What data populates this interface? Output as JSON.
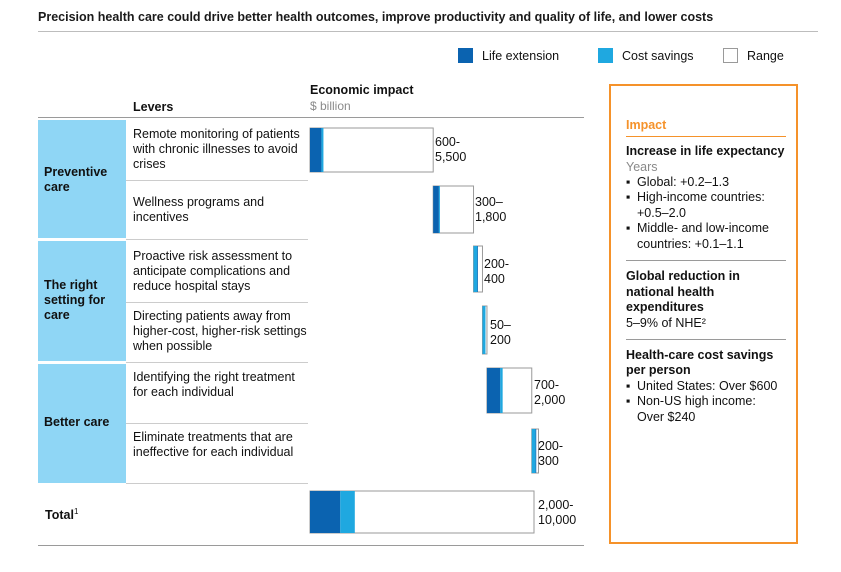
{
  "title": "Precision health care could drive better health outcomes, improve productivity and quality of life, and lower costs",
  "legend": [
    {
      "label": "Life extension",
      "color": "#0b63b0"
    },
    {
      "label": "Cost savings",
      "color": "#1fa8e0"
    },
    {
      "label": "Range",
      "color": "#ffffff"
    }
  ],
  "levers_header": "Levers",
  "impact_header": "Economic impact",
  "impact_unit": "$ billion",
  "groups": [
    {
      "label": "Preventive care"
    },
    {
      "label": "The right setting for care"
    },
    {
      "label": "Better care"
    }
  ],
  "levers": [
    "Remote monitoring of patients with chronic illnesses to avoid crises",
    "Wellness programs and incentives",
    "Proactive risk assessment to anticipate complications and reduce hospital stays",
    "Directing patients away from higher-cost, higher-risk settings when possible",
    "Identifying the right treatment for each individual",
    "Eliminate treatments that are ineffective for each individual"
  ],
  "total_label": "Total",
  "total_footnote": "1",
  "chart_data": {
    "type": "bar",
    "title": "Economic impact",
    "unit": "$ billion",
    "categories": [
      "Remote monitoring of patients with chronic illnesses to avoid crises",
      "Wellness programs and incentives",
      "Proactive risk assessment to anticipate complications and reduce hospital stays",
      "Directing patients away from higher-cost, higher-risk settings when possible",
      "Identifying the right treatment for each individual",
      "Eliminate treatments that are ineffective for each individual",
      "Total"
    ],
    "range_labels": [
      "600-\n5,500",
      "300–\n1,800",
      "200-\n400",
      "50–\n200",
      "700-\n2,000",
      "200-\n300",
      "2,000-\n10,000"
    ],
    "waterfall_start": [
      0,
      5500,
      7300,
      7700,
      7900,
      9900,
      0
    ],
    "range_low": [
      600,
      300,
      200,
      50,
      700,
      200,
      2000
    ],
    "range_high": [
      5500,
      1800,
      400,
      200,
      2000,
      300,
      10000
    ],
    "dominant_component": [
      "Life extension",
      "Life extension",
      "Cost savings",
      "Cost savings",
      "Life extension",
      "Cost savings",
      "Life extension + Cost savings"
    ],
    "total_split": {
      "Life extension": 1350,
      "Cost savings": 650
    },
    "xlim": [
      0,
      10000
    ]
  },
  "impact_panel": {
    "title": "Impact",
    "sections": [
      {
        "heading": "Increase in life expectancy",
        "sub": "Years",
        "items": [
          "Global: +0.2–1.3",
          "High-income countries: +0.5–2.0",
          "Middle- and low-income countries: +0.1–1.1"
        ]
      },
      {
        "heading": "Global reduction in national health expenditures",
        "text": "5–9% of NHE²"
      },
      {
        "heading": "Health-care cost savings per person",
        "items": [
          "United States: Over $600",
          "Non-US high income: Over $240"
        ]
      }
    ]
  }
}
